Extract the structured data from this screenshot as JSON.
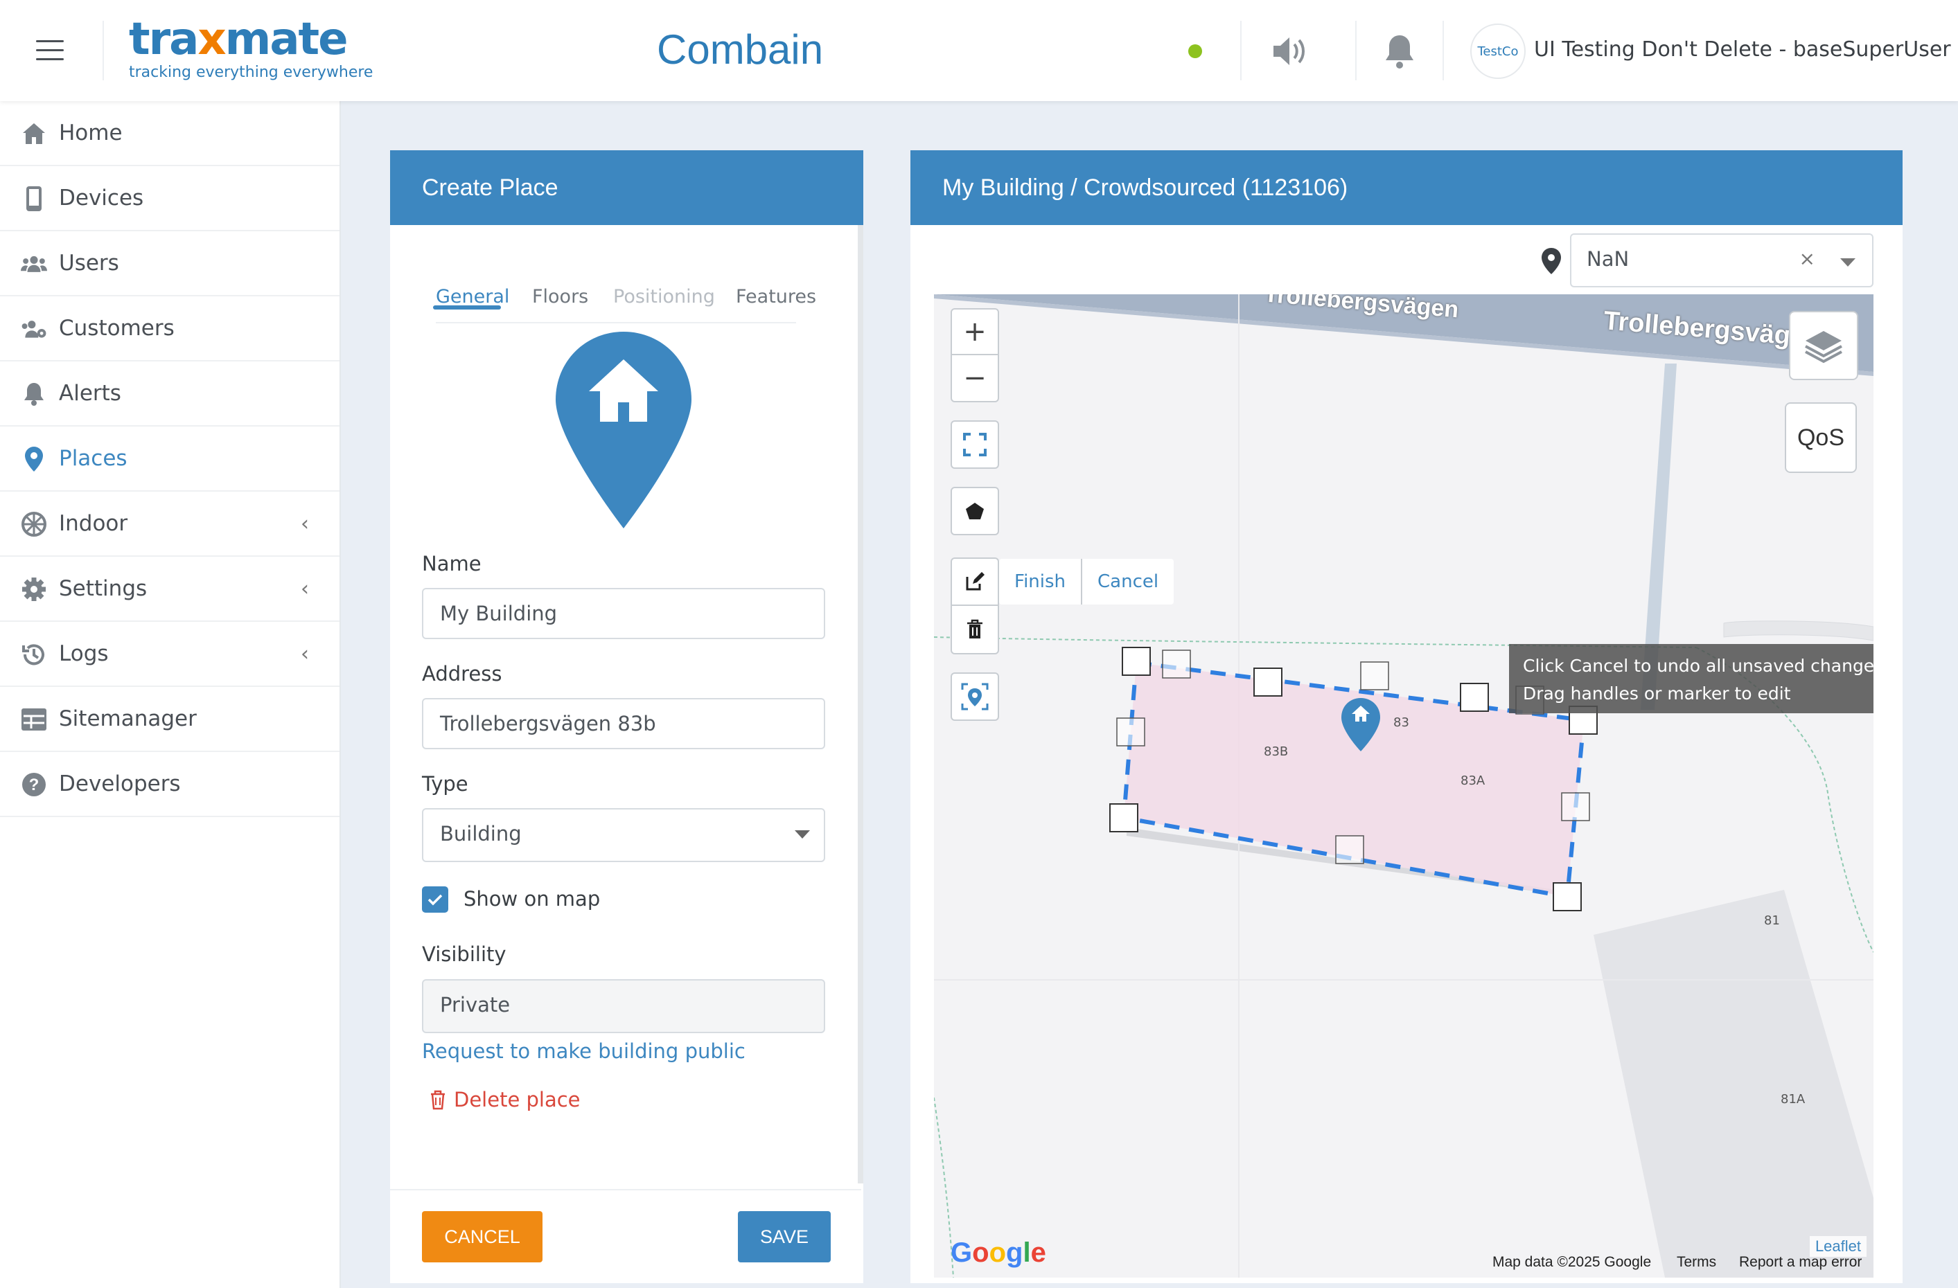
{
  "header": {
    "logo_main_a": "tra",
    "logo_x": "x",
    "logo_main_b": "mate",
    "logo_tagline": "tracking everything everywhere",
    "app_title": "Combain",
    "avatar_text": "TestCo",
    "user_name": "UI Testing Don't Delete - baseSuperUser",
    "status_color": "#8dc21f"
  },
  "sidebar": {
    "items": [
      {
        "label": "Home",
        "icon": "home-icon"
      },
      {
        "label": "Devices",
        "icon": "device-icon"
      },
      {
        "label": "Users",
        "icon": "users-icon"
      },
      {
        "label": "Customers",
        "icon": "customers-icon"
      },
      {
        "label": "Alerts",
        "icon": "bell-icon"
      },
      {
        "label": "Places",
        "icon": "map-pin-icon",
        "active": true
      },
      {
        "label": "Indoor",
        "icon": "indoor-icon",
        "chevron": "‹"
      },
      {
        "label": "Settings",
        "icon": "gear-icon",
        "chevron": "‹"
      },
      {
        "label": "Logs",
        "icon": "history-icon",
        "chevron": "‹"
      },
      {
        "label": "Sitemanager",
        "icon": "grid-icon"
      },
      {
        "label": "Developers",
        "icon": "question-icon"
      }
    ]
  },
  "create_place": {
    "title": "Create Place",
    "tabs": [
      "General",
      "Floors",
      "Positioning",
      "Features"
    ],
    "name_label": "Name",
    "name_value": "My Building",
    "address_label": "Address",
    "address_value": "Trollebergsvägen 83b",
    "type_label": "Type",
    "type_value": "Building",
    "show_on_map_label": "Show on map",
    "show_on_map_checked": true,
    "visibility_label": "Visibility",
    "visibility_value": "Private",
    "public_request_link": "Request to make building public",
    "delete_label": "Delete place",
    "cancel_label": "CANCEL",
    "save_label": "SAVE"
  },
  "map_panel": {
    "title": "My Building / Crowdsourced (1123106)",
    "location_select_value": "NaN",
    "clear_symbol": "×",
    "zoom_in": "+",
    "zoom_out": "−",
    "finish_label": "Finish",
    "cancel_label": "Cancel",
    "qos_label": "QoS",
    "tooltip_line1": "Click Cancel to undo all unsaved changes",
    "tooltip_line2": "Drag handles or marker to edit",
    "street_label": "Trollebergsvägen",
    "building_labels": [
      "83B",
      "83",
      "83A",
      "81",
      "81A"
    ],
    "google_logo": "Google",
    "attribution": "Map data ©2025 Google",
    "terms": "Terms",
    "report": "Report a map error",
    "leaflet": "Leaflet"
  },
  "colors": {
    "accent": "#3d87c0",
    "cancel_button": "#f08a13",
    "danger": "#d9473b",
    "polygon_fill": "#f1d9e6",
    "polygon_stroke": "#2f7fe0"
  }
}
